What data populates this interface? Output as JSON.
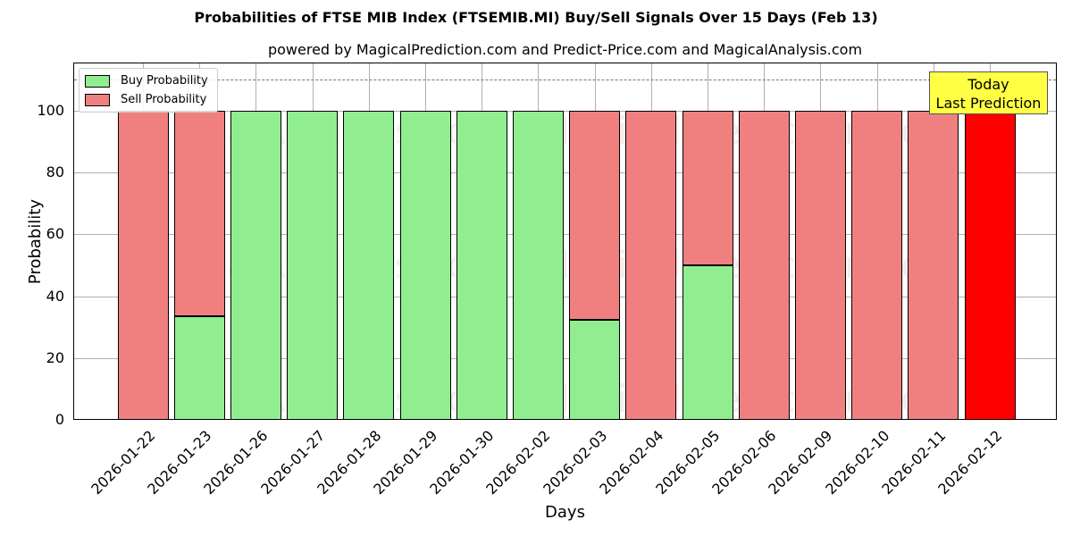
{
  "header": {
    "title": "Probabilities of FTSE MIB Index (FTSEMIB.MI) Buy/Sell Signals Over 15 Days (Feb 13)",
    "subtitle": "powered by MagicalPrediction.com and Predict-Price.com and MagicalAnalysis.com"
  },
  "legend": {
    "buy": "Buy Probability",
    "sell": "Sell Probability"
  },
  "annotation": {
    "line1": "Today",
    "line2": "Last Prediction"
  },
  "watermarks": [
    "MagicalAnalysis.com",
    "MagicalPrediction.com"
  ],
  "colors": {
    "buy": "#90ee90",
    "sell": "#f08080",
    "today_sell": "#ff0000",
    "note": "#ffff44"
  },
  "chart_data": {
    "type": "bar",
    "stacked": true,
    "title": "Probabilities of FTSE MIB Index (FTSEMIB.MI) Buy/Sell Signals Over 15 Days (Feb 13)",
    "subtitle": "powered by MagicalPrediction.com and Predict-Price.com and MagicalAnalysis.com",
    "xlabel": "Days",
    "ylabel": "Probability",
    "ylim": [
      0,
      115
    ],
    "yticks": [
      0,
      20,
      40,
      60,
      80,
      100
    ],
    "categories": [
      "2026-01-22",
      "2026-01-23",
      "2026-01-26",
      "2026-01-27",
      "2026-01-28",
      "2026-01-29",
      "2026-01-30",
      "2026-02-02",
      "2026-02-03",
      "2026-02-04",
      "2026-02-05",
      "2026-02-06",
      "2026-02-09",
      "2026-02-10",
      "2026-02-11",
      "2026-02-12"
    ],
    "series": [
      {
        "name": "Buy Probability",
        "values": [
          0,
          33.5,
          100,
          100,
          100,
          100,
          100,
          100,
          32.4,
          0,
          50,
          0,
          0,
          0,
          0,
          0
        ]
      },
      {
        "name": "Sell Probability",
        "values": [
          100,
          66.5,
          0,
          0,
          0,
          0,
          0,
          0,
          67.6,
          100,
          50,
          100,
          100,
          100,
          100,
          100
        ]
      }
    ],
    "reference_line": 110,
    "legend_position": "upper left",
    "grid": true
  }
}
